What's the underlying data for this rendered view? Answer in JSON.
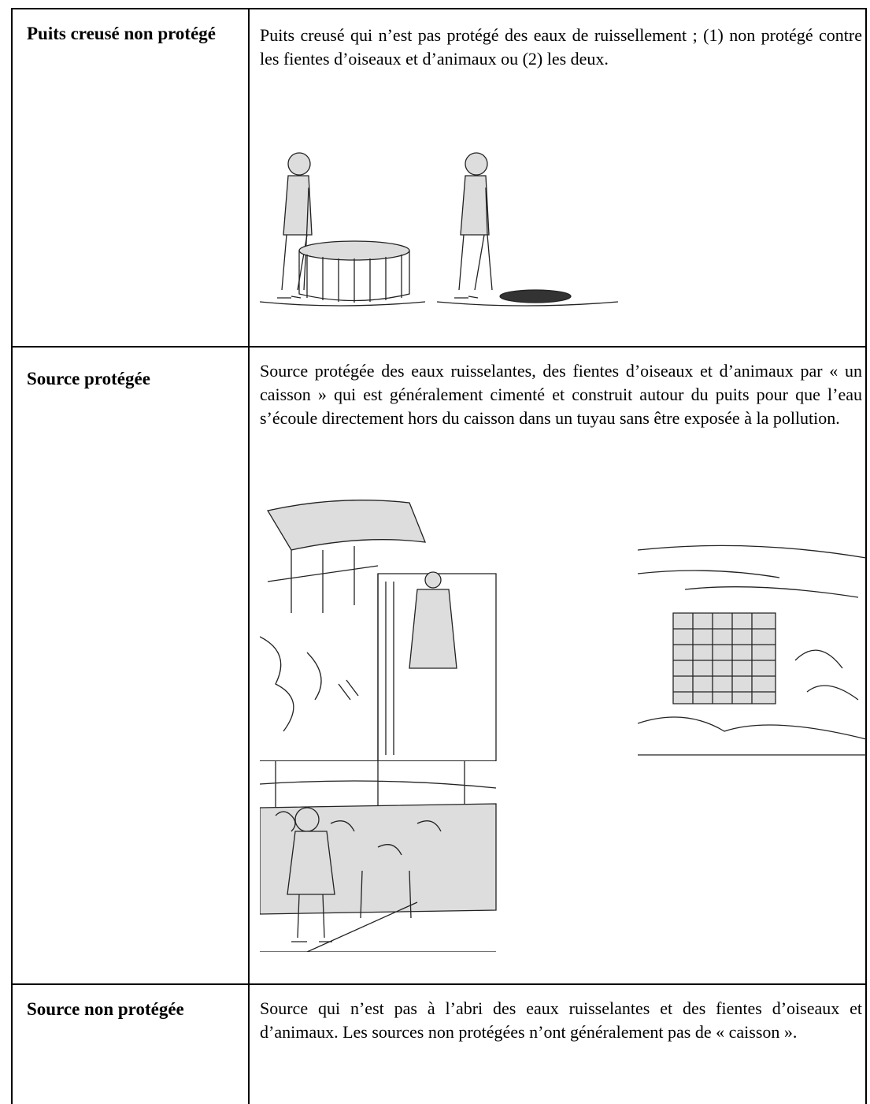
{
  "table": {
    "rows": [
      [
        "Puits creusé non protégé",
        "Puits creusé qui n’est pas protégé des eaux de ruissellement ; (1) non protégé contre les fientes d’oiseaux et d’animaux ou (2) les deux."
      ],
      [
        "Source protégée",
        "Source protégée des eaux ruisselantes, des fientes d’oiseaux et d’animaux par « un caisson » qui est généralement cimenté et construit autour du puits pour que l’eau s’écoule directement hors du caisson dans un tuyau sans être exposée à la pollution."
      ],
      [
        "Source non protégée",
        "Source qui n’est pas à l’abri des eaux ruisselantes et des fientes d’oiseaux et d’animaux. Les sources non protégées n’ont généralement pas de « caisson »."
      ]
    ]
  }
}
